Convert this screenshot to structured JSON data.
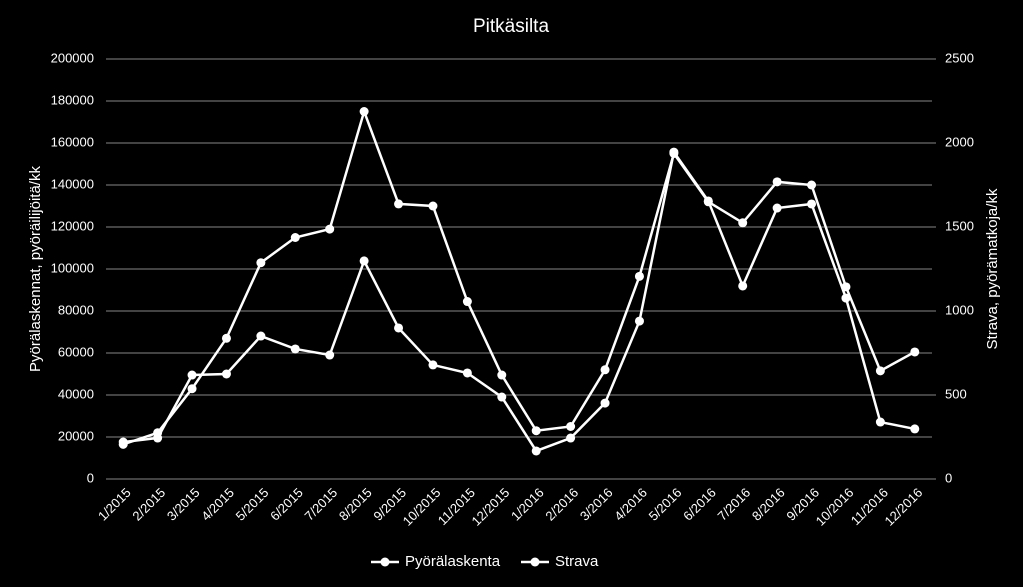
{
  "chart_data": {
    "type": "line",
    "title": "Pitkäsilta",
    "y_label": "Pyörälaskennat, pyöräilijöitä/kk",
    "y2_label": "Strava, pyörämatkoja/kk",
    "categories": [
      "1/2015",
      "2/2015",
      "3/2015",
      "4/2015",
      "5/2015",
      "6/2015",
      "7/2015",
      "8/2015",
      "9/2015",
      "10/2015",
      "11/2015",
      "12/2015",
      "1/2016",
      "2/2016",
      "3/2016",
      "4/2016",
      "5/2016",
      "6/2016",
      "7/2016",
      "8/2016",
      "9/2016",
      "10/2016",
      "11/2016",
      "12/2016"
    ],
    "series": [
      {
        "name": "Pyörälaskenta",
        "color": "#ffffff",
        "values": [
          16500,
          22000,
          43000,
          67000,
          103000,
          115000,
          119000,
          175000,
          131000,
          130000,
          84500,
          49500,
          23000,
          25000,
          52000,
          96500,
          155000,
          132000,
          122000,
          141500,
          140000,
          91500,
          51500,
          60500
        ]
      },
      {
        "name": "Strava",
        "color": "#ffffff",
        "axis": "y2",
        "values": [
          220,
          244,
          619,
          625,
          851,
          774,
          738,
          1298,
          899,
          679,
          631,
          488,
          167,
          244,
          452,
          940,
          1946,
          1655,
          1149,
          1613,
          1637,
          1077,
          339,
          298
        ]
      }
    ],
    "ylim": [
      0,
      200000
    ],
    "yticks": [
      0,
      20000,
      40000,
      60000,
      80000,
      100000,
      120000,
      140000,
      160000,
      180000,
      200000
    ],
    "y2lim": [
      0,
      2500
    ],
    "y2ticks": [
      0,
      500,
      1000,
      1500,
      2000,
      2500
    ],
    "grid": true,
    "legend": "bottom"
  }
}
